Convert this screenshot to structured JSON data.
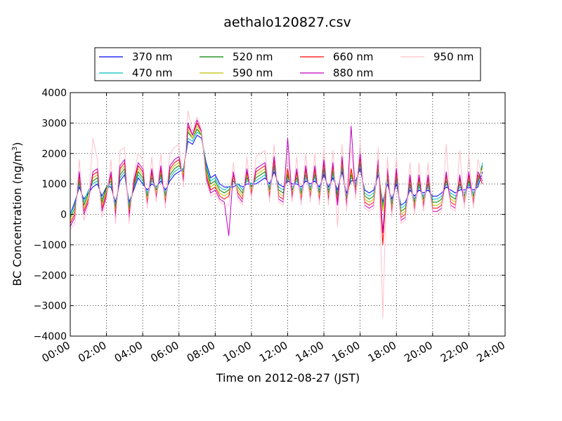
{
  "chart_data": {
    "type": "line",
    "title": "aethalo120827.csv",
    "xlabel": "Time on 2012-08-27 (JST)",
    "ylabel": "BC Concentration (ng/m",
    "ylabel_sup": "3",
    "ylabel_close": ")",
    "xlim": [
      0,
      24
    ],
    "ylim": [
      -4000,
      4000
    ],
    "x_unit": "hours",
    "x_tick_labels": [
      "00:00",
      "02:00",
      "04:00",
      "06:00",
      "08:00",
      "10:00",
      "12:00",
      "14:00",
      "16:00",
      "18:00",
      "20:00",
      "22:00",
      "24:00"
    ],
    "y_ticks": [
      -4000,
      -3000,
      -2000,
      -1000,
      0,
      1000,
      2000,
      3000,
      4000
    ],
    "y_tick_labels": [
      "−4000",
      "−3000",
      "−2000",
      "−1000",
      "0",
      "1000",
      "2000",
      "3000",
      "4000"
    ],
    "grid": true,
    "legend_position": "top",
    "x": [
      0.0,
      0.25,
      0.5,
      0.75,
      1.0,
      1.25,
      1.5,
      1.75,
      2.0,
      2.25,
      2.5,
      2.75,
      3.0,
      3.25,
      3.5,
      3.75,
      4.0,
      4.25,
      4.5,
      4.75,
      5.0,
      5.25,
      5.5,
      5.75,
      6.0,
      6.25,
      6.5,
      6.75,
      7.0,
      7.25,
      7.5,
      7.75,
      8.0,
      8.25,
      8.5,
      8.75,
      9.0,
      9.25,
      9.5,
      9.75,
      10.0,
      10.25,
      10.5,
      10.75,
      11.0,
      11.25,
      11.5,
      11.75,
      12.0,
      12.25,
      12.5,
      12.75,
      13.0,
      13.25,
      13.5,
      13.75,
      14.0,
      14.25,
      14.5,
      14.75,
      15.0,
      15.25,
      15.5,
      15.75,
      16.0,
      16.25,
      16.5,
      16.75,
      17.0,
      17.25,
      17.5,
      17.75,
      18.0,
      18.25,
      18.5,
      18.75,
      19.0,
      19.25,
      19.5,
      19.75,
      20.0,
      20.25,
      20.5,
      20.75,
      21.0,
      21.25,
      21.5,
      21.75,
      22.0,
      22.25,
      22.5,
      22.75
    ],
    "series": [
      {
        "name": "370 nm",
        "color": "#0000ff",
        "values": [
          0,
          400,
          900,
          500,
          700,
          900,
          1000,
          600,
          900,
          900,
          400,
          1100,
          1300,
          400,
          800,
          1200,
          1000,
          800,
          1000,
          900,
          1100,
          800,
          1100,
          1300,
          1400,
          1500,
          2400,
          2300,
          2600,
          2500,
          1700,
          1200,
          1300,
          1000,
          900,
          900,
          900,
          1000,
          900,
          1000,
          1000,
          1000,
          1100,
          1200,
          1000,
          1400,
          1000,
          900,
          1100,
          1000,
          1000,
          900,
          1100,
          1000,
          1100,
          900,
          1300,
          900,
          1200,
          800,
          1400,
          700,
          1100,
          1100,
          1500,
          800,
          700,
          800,
          1300,
          400,
          1000,
          500,
          1000,
          300,
          400,
          800,
          600,
          800,
          700,
          800,
          600,
          600,
          700,
          900,
          800,
          700,
          800,
          800,
          900,
          800,
          900,
          1400
        ]
      },
      {
        "name": "470 nm",
        "color": "#00bfbf",
        "values": [
          0,
          300,
          1000,
          400,
          800,
          1000,
          1100,
          500,
          800,
          1000,
          300,
          1200,
          1400,
          300,
          900,
          1300,
          1100,
          700,
          1100,
          900,
          1200,
          700,
          1200,
          1400,
          1500,
          1500,
          2500,
          2400,
          2700,
          2600,
          1600,
          1100,
          1200,
          900,
          800,
          900,
          1000,
          1000,
          800,
          1100,
          1000,
          1100,
          1200,
          1300,
          900,
          1500,
          900,
          800,
          1200,
          900,
          1100,
          800,
          1200,
          900,
          1200,
          800,
          1400,
          800,
          1300,
          700,
          1500,
          600,
          1200,
          1000,
          1600,
          700,
          600,
          700,
          1400,
          300,
          1100,
          400,
          1100,
          200,
          300,
          900,
          500,
          900,
          600,
          900,
          500,
          500,
          600,
          1000,
          700,
          600,
          900,
          700,
          1000,
          700,
          1000,
          1700
        ]
      },
      {
        "name": "520 nm",
        "color": "#008000",
        "values": [
          -100,
          200,
          1100,
          300,
          700,
          1100,
          1200,
          400,
          900,
          1100,
          200,
          1300,
          1500,
          200,
          900,
          1400,
          1200,
          600,
          1200,
          800,
          1300,
          600,
          1300,
          1500,
          1600,
          1400,
          2700,
          2500,
          2800,
          2600,
          1500,
          1000,
          1100,
          800,
          700,
          800,
          1100,
          900,
          700,
          1200,
          900,
          1200,
          1300,
          1400,
          800,
          1600,
          800,
          700,
          1300,
          800,
          1200,
          700,
          1300,
          800,
          1300,
          700,
          1500,
          700,
          1400,
          600,
          1600,
          500,
          1300,
          900,
          1700,
          600,
          500,
          600,
          1500,
          200,
          1200,
          300,
          1200,
          100,
          200,
          1000,
          400,
          1000,
          500,
          1000,
          400,
          400,
          500,
          1100,
          600,
          500,
          1000,
          600,
          1100,
          600,
          1100,
          1600
        ]
      },
      {
        "name": "590 nm",
        "color": "#bfbf00",
        "values": [
          -200,
          100,
          1200,
          200,
          600,
          1200,
          1300,
          300,
          800,
          1200,
          100,
          1400,
          1600,
          100,
          1000,
          1500,
          1300,
          500,
          1300,
          700,
          1400,
          500,
          1400,
          1600,
          1700,
          1300,
          2800,
          2500,
          2900,
          2600,
          1400,
          900,
          1000,
          700,
          600,
          700,
          1200,
          800,
          600,
          1300,
          800,
          1300,
          1400,
          1500,
          700,
          1700,
          700,
          600,
          1400,
          700,
          1300,
          600,
          1400,
          700,
          1400,
          600,
          1600,
          600,
          1500,
          500,
          1700,
          400,
          1400,
          800,
          1800,
          500,
          400,
          500,
          1600,
          100,
          1300,
          200,
          1300,
          0,
          100,
          1100,
          300,
          1100,
          400,
          1100,
          300,
          300,
          400,
          1200,
          500,
          400,
          1100,
          500,
          1200,
          500,
          1200,
          1500
        ]
      },
      {
        "name": "660 nm",
        "color": "#ff0000",
        "values": [
          -300,
          0,
          1300,
          100,
          500,
          1300,
          1400,
          200,
          700,
          1300,
          0,
          1500,
          1700,
          0,
          1000,
          1600,
          1400,
          400,
          1400,
          600,
          1500,
          400,
          1500,
          1700,
          1800,
          1200,
          2900,
          2600,
          3000,
          2700,
          1300,
          800,
          900,
          600,
          500,
          600,
          1300,
          700,
          500,
          1400,
          700,
          1400,
          1500,
          1600,
          600,
          1800,
          600,
          500,
          1500,
          600,
          1400,
          500,
          1500,
          600,
          1500,
          500,
          1700,
          500,
          1600,
          400,
          1800,
          300,
          1500,
          700,
          1900,
          400,
          300,
          400,
          1700,
          -1000,
          1400,
          100,
          1400,
          -100,
          0,
          1200,
          200,
          1200,
          300,
          1200,
          200,
          200,
          300,
          1300,
          400,
          300,
          1200,
          400,
          1300,
          400,
          1300,
          1000
        ]
      },
      {
        "name": "880 nm",
        "color": "#bf00bf",
        "values": [
          -400,
          -100,
          1400,
          0,
          400,
          1400,
          1500,
          100,
          600,
          1400,
          -100,
          1600,
          1800,
          -100,
          1100,
          1700,
          1500,
          300,
          1500,
          500,
          1600,
          300,
          1600,
          1800,
          1900,
          1100,
          3000,
          2600,
          3100,
          2700,
          1200,
          700,
          800,
          500,
          400,
          -700,
          1400,
          600,
          400,
          1500,
          600,
          1500,
          1600,
          1700,
          500,
          1900,
          500,
          400,
          2500,
          500,
          1500,
          400,
          1600,
          500,
          1600,
          400,
          1800,
          400,
          1700,
          300,
          1900,
          200,
          2900,
          600,
          2000,
          300,
          200,
          300,
          1800,
          -600,
          1500,
          0,
          1500,
          -200,
          -100,
          1300,
          100,
          1300,
          200,
          1300,
          100,
          100,
          200,
          1400,
          300,
          200,
          1300,
          300,
          1400,
          300,
          1400,
          1100
        ]
      },
      {
        "name": "950 nm",
        "color": "#ffc0cb",
        "values": [
          -500,
          -300,
          1800,
          -200,
          300,
          2500,
          1800,
          -100,
          500,
          1800,
          -300,
          2100,
          2200,
          -300,
          1300,
          2000,
          1800,
          200,
          1900,
          400,
          2000,
          200,
          2000,
          2200,
          2300,
          900,
          3400,
          2700,
          3200,
          2800,
          1100,
          600,
          700,
          400,
          300,
          300,
          1700,
          500,
          300,
          1900,
          500,
          1900,
          2000,
          2100,
          400,
          2300,
          400,
          300,
          1900,
          400,
          1900,
          300,
          2000,
          400,
          2000,
          300,
          2200,
          300,
          2100,
          -400,
          2300,
          100,
          2200,
          500,
          2400,
          200,
          100,
          200,
          2200,
          -3400,
          1900,
          -100,
          1900,
          -300,
          -200,
          1700,
          0,
          1700,
          100,
          1700,
          0,
          0,
          100,
          2300,
          200,
          100,
          2100,
          200,
          2000,
          200,
          1800,
          1200
        ]
      }
    ]
  }
}
